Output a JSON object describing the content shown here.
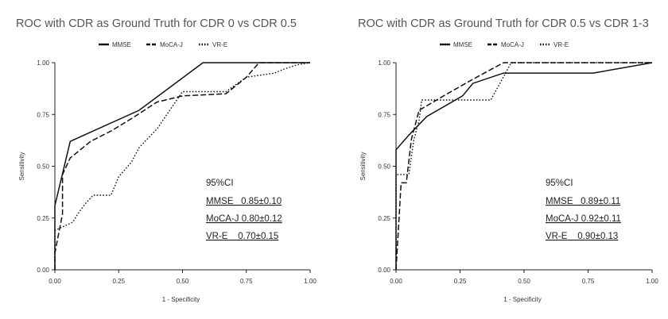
{
  "chart_data": [
    {
      "type": "line",
      "title": "ROC with CDR as Ground Truth for CDR 0 vs CDR 0.5",
      "xlabel": "1 - Specificity",
      "ylabel": "Sensitivity",
      "xlim": [
        0,
        1
      ],
      "ylim": [
        0,
        1
      ],
      "xticks": [
        "0.00",
        "0.25",
        "0.50",
        "0.75",
        "1.00"
      ],
      "yticks": [
        "0.00",
        "0.25",
        "0.50",
        "0.75",
        "1.00"
      ],
      "grid": false,
      "legend_position": "top-center",
      "annotation_title": "95%CI",
      "annotations": [
        "MMSE   0.85±0.10",
        "MoCA-J 0.80±0.12",
        "VR-E    0.70±0.15"
      ],
      "series": [
        {
          "name": "MMSE",
          "style": "solid",
          "points": [
            [
              0,
              0
            ],
            [
              0,
              0.31
            ],
            [
              0.06,
              0.62
            ],
            [
              0.33,
              0.77
            ],
            [
              0.58,
              1.0
            ],
            [
              1.0,
              1.0
            ]
          ]
        },
        {
          "name": "MoCA-J",
          "style": "dashed",
          "points": [
            [
              0,
              0
            ],
            [
              0,
              0.08
            ],
            [
              0.03,
              0.27
            ],
            [
              0.03,
              0.46
            ],
            [
              0.06,
              0.54
            ],
            [
              0.14,
              0.62
            ],
            [
              0.22,
              0.67
            ],
            [
              0.3,
              0.73
            ],
            [
              0.4,
              0.81
            ],
            [
              0.5,
              0.84
            ],
            [
              0.67,
              0.85
            ],
            [
              0.75,
              0.93
            ],
            [
              0.8,
              1.0
            ],
            [
              1.0,
              1.0
            ]
          ]
        },
        {
          "name": "VR-E",
          "style": "dotted",
          "points": [
            [
              0,
              0
            ],
            [
              0,
              0.19
            ],
            [
              0.07,
              0.23
            ],
            [
              0.09,
              0.27
            ],
            [
              0.12,
              0.32
            ],
            [
              0.15,
              0.36
            ],
            [
              0.22,
              0.36
            ],
            [
              0.25,
              0.45
            ],
            [
              0.3,
              0.52
            ],
            [
              0.33,
              0.59
            ],
            [
              0.4,
              0.68
            ],
            [
              0.5,
              0.86
            ],
            [
              0.67,
              0.86
            ],
            [
              0.75,
              0.93
            ],
            [
              0.86,
              0.95
            ],
            [
              0.9,
              0.97
            ],
            [
              0.95,
              0.99
            ],
            [
              1.0,
              1.0
            ]
          ]
        }
      ]
    },
    {
      "type": "line",
      "title": "ROC with CDR as Ground Truth for CDR 0.5 vs CDR 1-3",
      "xlabel": "1 - Specificity",
      "ylabel": "Sensitivity",
      "xlim": [
        0,
        1
      ],
      "ylim": [
        0,
        1
      ],
      "xticks": [
        "0.00",
        "0.25",
        "0.50",
        "0.75",
        "1.00"
      ],
      "yticks": [
        "0.00",
        "0.25",
        "0.50",
        "0.75",
        "1.00"
      ],
      "grid": false,
      "legend_position": "top-center",
      "annotation_title": "95%CI",
      "annotations": [
        "MMSE   0.89±0.11",
        "MoCA-J 0.92±0.11",
        "VR-E    0.90±0.13"
      ],
      "series": [
        {
          "name": "MMSE",
          "style": "solid",
          "points": [
            [
              0,
              0
            ],
            [
              0,
              0.58
            ],
            [
              0.05,
              0.65
            ],
            [
              0.12,
              0.74
            ],
            [
              0.26,
              0.84
            ],
            [
              0.3,
              0.9
            ],
            [
              0.42,
              0.95
            ],
            [
              0.77,
              0.95
            ],
            [
              1.0,
              1.0
            ]
          ]
        },
        {
          "name": "MoCA-J",
          "style": "dashed",
          "points": [
            [
              0,
              0
            ],
            [
              0.02,
              0.42
            ],
            [
              0.04,
              0.42
            ],
            [
              0.06,
              0.63
            ],
            [
              0.09,
              0.77
            ],
            [
              0.2,
              0.85
            ],
            [
              0.3,
              0.92
            ],
            [
              0.42,
              1.0
            ],
            [
              1.0,
              1.0
            ]
          ]
        },
        {
          "name": "VR-E",
          "style": "dotted",
          "points": [
            [
              0,
              0
            ],
            [
              0,
              0.46
            ],
            [
              0.05,
              0.46
            ],
            [
              0.07,
              0.63
            ],
            [
              0.09,
              0.72
            ],
            [
              0.1,
              0.82
            ],
            [
              0.37,
              0.82
            ],
            [
              0.45,
              1.0
            ],
            [
              1.0,
              1.0
            ]
          ]
        }
      ]
    }
  ]
}
